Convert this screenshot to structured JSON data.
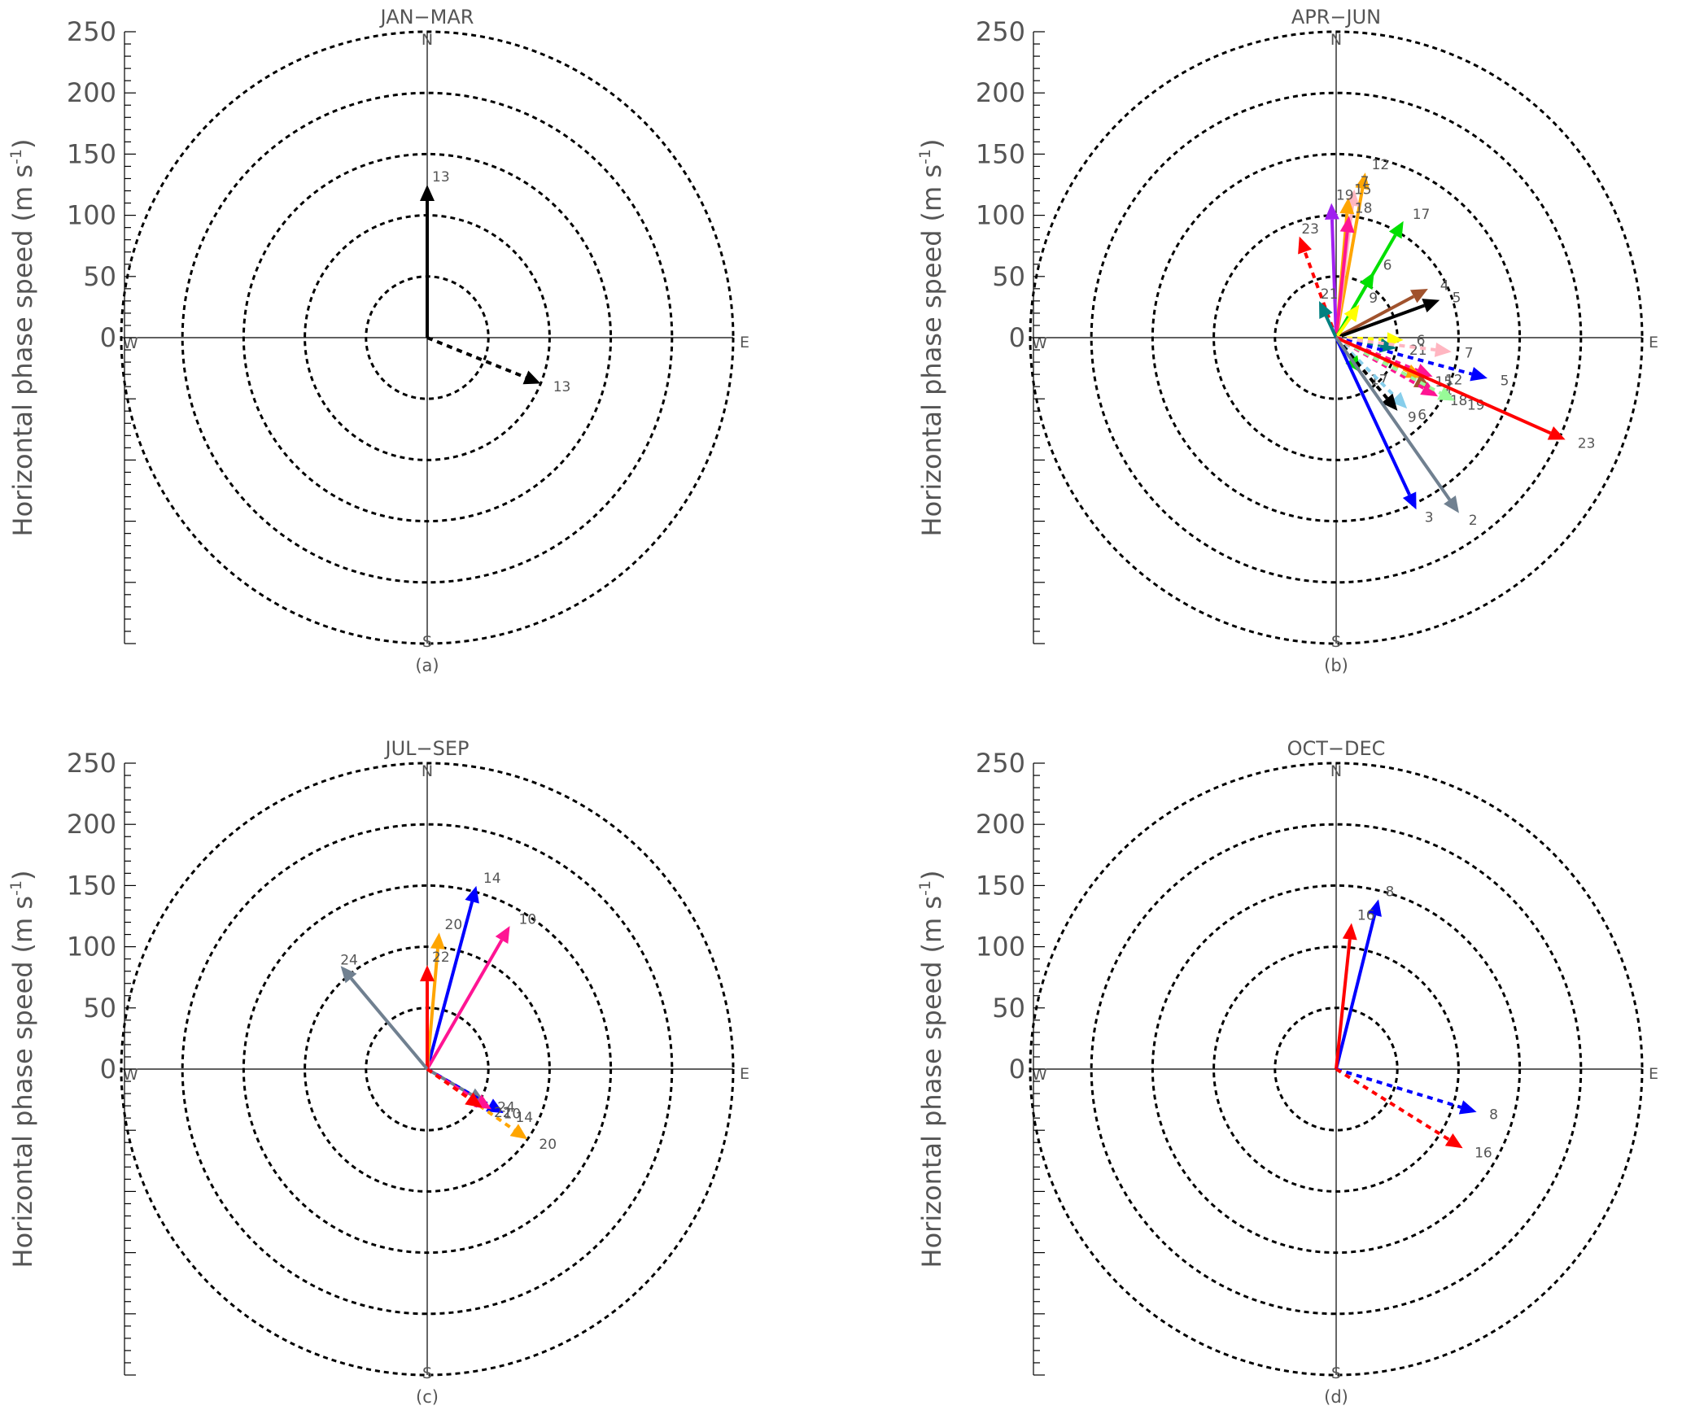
{
  "ylabel_main": "Horizontal phase speed",
  "ylabel_unit_base": "(m s",
  "ylabel_unit_exp": "-1",
  "ylabel_unit_close": ")",
  "ticks": [
    "0",
    "50",
    "100",
    "150",
    "200",
    "250"
  ],
  "compass": {
    "n": "N",
    "s": "S",
    "e": "E",
    "w": "W"
  },
  "colors": {
    "grid": "#000000",
    "label": "#555555",
    "black": "#000000",
    "red": "#ff0000",
    "blue": "#0000ff",
    "green": "#00e000",
    "yellow": "#ffff00",
    "orange": "#ffa500",
    "pink": "#ffb6c1",
    "magenta": "#ff1493",
    "purple": "#a020f0",
    "brown": "#a0522d",
    "teal": "#008080",
    "slategray": "#708090",
    "lightblue": "#87ceeb",
    "palegreen": "#98fb98"
  },
  "chart_data": [
    {
      "type": "polar-vector",
      "title": "JAN−MAR",
      "caption": "(a)",
      "radial_axis": {
        "label": "Horizontal phase speed (m s-1)",
        "range": [
          0,
          250
        ],
        "ring_step": 50
      },
      "compass_labels": [
        "N",
        "E",
        "S",
        "W"
      ],
      "vectors": [
        {
          "label": "13",
          "direction_deg": 0,
          "speed": 125,
          "color": "black",
          "dashed": false
        },
        {
          "label": "13",
          "direction_deg": 112,
          "speed": 100,
          "color": "black",
          "dashed": true
        }
      ]
    },
    {
      "type": "polar-vector",
      "title": "APR−JUN",
      "caption": "(b)",
      "radial_axis": {
        "label": "Horizontal phase speed (m s-1)",
        "range": [
          0,
          250
        ],
        "ring_step": 50
      },
      "compass_labels": [
        "N",
        "E",
        "S",
        "W"
      ],
      "vectors": [
        {
          "label": "12",
          "direction_deg": 10,
          "speed": 137,
          "color": "orange",
          "dashed": false
        },
        {
          "label": "7",
          "direction_deg": 7,
          "speed": 122,
          "color": "pink",
          "dashed": false
        },
        {
          "label": "15",
          "direction_deg": 5,
          "speed": 115,
          "color": "orange",
          "dashed": false
        },
        {
          "label": "19",
          "direction_deg": -2,
          "speed": 110,
          "color": "purple",
          "dashed": false
        },
        {
          "label": "18",
          "direction_deg": 6,
          "speed": 100,
          "color": "magenta",
          "dashed": false
        },
        {
          "label": "17",
          "direction_deg": 30,
          "speed": 110,
          "color": "green",
          "dashed": false
        },
        {
          "label": "6",
          "direction_deg": 30,
          "speed": 62,
          "color": "green",
          "dashed": false
        },
        {
          "label": "23",
          "direction_deg": -20,
          "speed": 88,
          "color": "red",
          "dashed": true
        },
        {
          "label": "4",
          "direction_deg": 62,
          "speed": 85,
          "color": "brown",
          "dashed": false
        },
        {
          "label": "5",
          "direction_deg": 70,
          "speed": 90,
          "color": "black",
          "dashed": false
        },
        {
          "label": "9",
          "direction_deg": 35,
          "speed": 33,
          "color": "yellow",
          "dashed": false
        },
        {
          "label": "21",
          "direction_deg": -25,
          "speed": 33,
          "color": "teal",
          "dashed": false
        },
        {
          "label": "6",
          "direction_deg": 92,
          "speed": 55,
          "color": "yellow",
          "dashed": true
        },
        {
          "label": "21",
          "direction_deg": 100,
          "speed": 50,
          "color": "teal",
          "dashed": true
        },
        {
          "label": "7",
          "direction_deg": 97,
          "speed": 95,
          "color": "pink",
          "dashed": true
        },
        {
          "label": "5",
          "direction_deg": 105,
          "speed": 128,
          "color": "blue",
          "dashed": true
        },
        {
          "label": "12",
          "direction_deg": 112,
          "speed": 85,
          "color": "magenta",
          "dashed": true
        },
        {
          "label": "15",
          "direction_deg": 115,
          "speed": 78,
          "color": "orange",
          "dashed": true
        },
        {
          "label": "4",
          "direction_deg": 118,
          "speed": 88,
          "color": "brown",
          "dashed": true
        },
        {
          "label": "18",
          "direction_deg": 120,
          "speed": 96,
          "color": "magenta",
          "dashed": true
        },
        {
          "label": "19",
          "direction_deg": 118,
          "speed": 110,
          "color": "palegreen",
          "dashed": true
        },
        {
          "label": "17",
          "direction_deg": 145,
          "speed": 35,
          "color": "green",
          "dashed": true
        },
        {
          "label": "6",
          "direction_deg": 135,
          "speed": 82,
          "color": "lightblue",
          "dashed": true
        },
        {
          "label": "9",
          "direction_deg": 140,
          "speed": 78,
          "color": "black",
          "dashed": true
        },
        {
          "label": "23",
          "direction_deg": 114,
          "speed": 205,
          "color": "red",
          "dashed": false
        },
        {
          "label": "3",
          "direction_deg": 155,
          "speed": 155,
          "color": "blue",
          "dashed": false
        },
        {
          "label": "2",
          "direction_deg": 145,
          "speed": 175,
          "color": "slategray",
          "dashed": false
        }
      ]
    },
    {
      "type": "polar-vector",
      "title": "JUL−SEP",
      "caption": "(c)",
      "radial_axis": {
        "label": "Horizontal phase speed (m s-1)",
        "range": [
          0,
          250
        ],
        "ring_step": 50
      },
      "compass_labels": [
        "N",
        "E",
        "S",
        "W"
      ],
      "vectors": [
        {
          "label": "14",
          "direction_deg": 15,
          "speed": 155,
          "color": "blue",
          "dashed": false
        },
        {
          "label": "10",
          "direction_deg": 30,
          "speed": 135,
          "color": "magenta",
          "dashed": false
        },
        {
          "label": "20",
          "direction_deg": 5,
          "speed": 112,
          "color": "orange",
          "dashed": false
        },
        {
          "label": "22",
          "direction_deg": 0,
          "speed": 85,
          "color": "red",
          "dashed": false
        },
        {
          "label": "24",
          "direction_deg": -40,
          "speed": 110,
          "color": "slategray",
          "dashed": false
        },
        {
          "label": "24",
          "direction_deg": 120,
          "speed": 55,
          "color": "slategray",
          "dashed": false
        },
        {
          "label": "14",
          "direction_deg": 120,
          "speed": 72,
          "color": "blue",
          "dashed": true
        },
        {
          "label": "20",
          "direction_deg": 125,
          "speed": 100,
          "color": "orange",
          "dashed": true
        },
        {
          "label": "10",
          "direction_deg": 122,
          "speed": 62,
          "color": "magenta",
          "dashed": true
        },
        {
          "label": "22",
          "direction_deg": 125,
          "speed": 55,
          "color": "red",
          "dashed": true
        }
      ]
    },
    {
      "type": "polar-vector",
      "title": "OCT−DEC",
      "caption": "(d)",
      "radial_axis": {
        "label": "Horizontal phase speed (m s-1)",
        "range": [
          0,
          250
        ],
        "ring_step": 50
      },
      "compass_labels": [
        "N",
        "E",
        "S",
        "W"
      ],
      "vectors": [
        {
          "label": "8",
          "direction_deg": 14,
          "speed": 143,
          "color": "blue",
          "dashed": false
        },
        {
          "label": "16",
          "direction_deg": 6,
          "speed": 120,
          "color": "red",
          "dashed": false
        },
        {
          "label": "8",
          "direction_deg": 107,
          "speed": 120,
          "color": "blue",
          "dashed": true
        },
        {
          "label": "16",
          "direction_deg": 122,
          "speed": 122,
          "color": "red",
          "dashed": true
        }
      ]
    }
  ]
}
